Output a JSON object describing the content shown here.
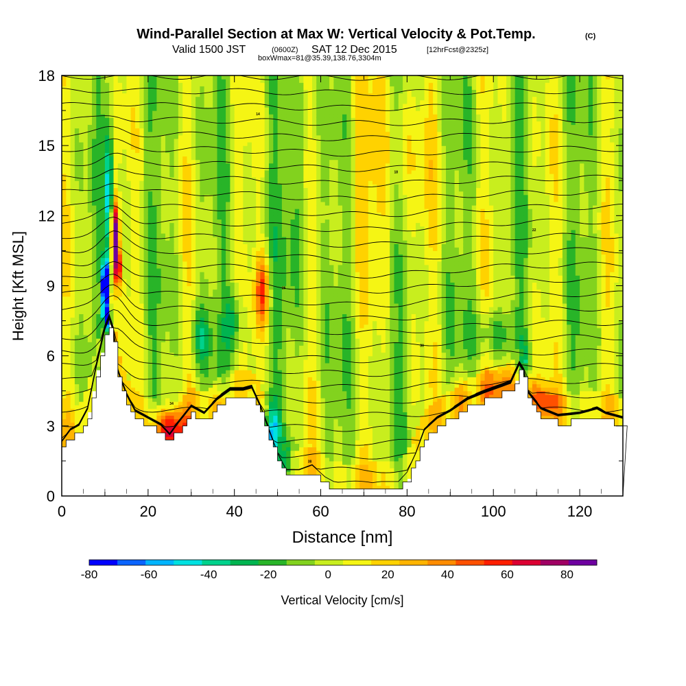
{
  "chart_data": {
    "type": "heatmap",
    "title": "Wind-Parallel Section at Max W: Vertical Velocity & Pot.Temp.",
    "title_mark": "(C)",
    "subtitle": {
      "valid": "Valid 1500 JST",
      "z": "(0600Z)",
      "date": "SAT 12 Dec 2015",
      "fcst": "[12hrFcst@2325z]",
      "box": "boxWmax=81@35.39,138.76,3304m"
    },
    "xlabel": "Distance [nm]",
    "ylabel": "Height [Kft MSL]",
    "xlim": [
      0,
      130
    ],
    "ylim": [
      0,
      18
    ],
    "x_ticks": [
      "0",
      "20",
      "40",
      "60",
      "80",
      "100",
      "120"
    ],
    "y_ticks": [
      "0",
      "3",
      "6",
      "9",
      "12",
      "15",
      "18"
    ],
    "colorbar": {
      "label": "Vertical Velocity [cm/s]",
      "levels": [
        -80,
        -70,
        -60,
        -50,
        -40,
        -30,
        -20,
        -10,
        0,
        10,
        20,
        30,
        40,
        50,
        60,
        70,
        80,
        90
      ],
      "colors": [
        "#0000ff",
        "#0a64ff",
        "#00b4ff",
        "#00e1e1",
        "#00d28c",
        "#00b450",
        "#28b428",
        "#82d21e",
        "#c8ee1e",
        "#f5f514",
        "#ffd200",
        "#ffb400",
        "#ff8c00",
        "#ff5000",
        "#ff1e00",
        "#dc0032",
        "#a00064",
        "#6e00a0"
      ],
      "tick_labels": [
        "-80",
        "-60",
        "-40",
        "-20",
        "0",
        "20",
        "40",
        "60",
        "80"
      ]
    },
    "terrain_kft": [
      [
        0,
        2.0
      ],
      [
        2,
        2.5
      ],
      [
        4,
        2.7
      ],
      [
        6,
        3.4
      ],
      [
        8,
        5.2
      ],
      [
        10,
        6.8
      ],
      [
        11.5,
        7.5
      ],
      [
        13,
        5.0
      ],
      [
        15,
        4.0
      ],
      [
        17,
        3.3
      ],
      [
        20,
        3.0
      ],
      [
        23,
        2.7
      ],
      [
        25,
        2.3
      ],
      [
        27,
        2.8
      ],
      [
        30,
        3.5
      ],
      [
        33,
        3.2
      ],
      [
        36,
        3.8
      ],
      [
        39,
        4.2
      ],
      [
        42,
        4.2
      ],
      [
        44,
        4.3
      ],
      [
        46,
        3.5
      ],
      [
        48,
        2.5
      ],
      [
        50,
        1.5
      ],
      [
        52,
        0.8
      ],
      [
        55,
        0.8
      ],
      [
        58,
        1.0
      ],
      [
        61,
        0.5
      ],
      [
        63,
        0.3
      ],
      [
        66,
        0.2
      ],
      [
        70,
        0.2
      ],
      [
        74,
        0.3
      ],
      [
        78,
        0.3
      ],
      [
        80,
        0.7
      ],
      [
        82,
        1.5
      ],
      [
        84,
        2.5
      ],
      [
        87,
        3.0
      ],
      [
        90,
        3.3
      ],
      [
        94,
        3.8
      ],
      [
        98,
        4.1
      ],
      [
        101,
        4.3
      ],
      [
        104,
        4.5
      ],
      [
        106,
        5.3
      ],
      [
        107,
        5.0
      ],
      [
        108,
        4.1
      ],
      [
        111,
        3.4
      ],
      [
        115,
        3.1
      ],
      [
        120,
        3.2
      ],
      [
        124,
        3.4
      ],
      [
        126,
        3.2
      ],
      [
        130,
        3.0
      ]
    ],
    "isentrope_labels": [
      "38",
      "34",
      "30",
      "26",
      "22",
      "18",
      "14",
      "10"
    ],
    "features": [
      {
        "name": "updraft-core-main",
        "x": 12,
        "y": 11.5,
        "w": 90
      },
      {
        "name": "downdraft-core-main",
        "x": 10,
        "y": 9.0,
        "w": -80
      },
      {
        "name": "updraft-lee-45nm",
        "x": 46,
        "y": 8.5,
        "w": 50
      },
      {
        "name": "downdraft-lee-48nm",
        "x": 48,
        "y": 2.5,
        "w": -40
      },
      {
        "name": "updraft-low-25nm",
        "x": 25,
        "y": 3.0,
        "w": 55
      }
    ]
  }
}
